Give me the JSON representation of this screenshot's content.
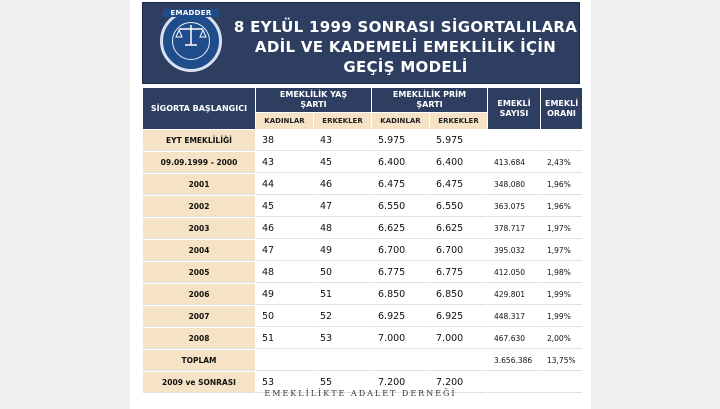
{
  "banner": {
    "logo_text": "EMADDER",
    "title_lines": [
      "8 EYLÜL 1999 SONRASI SİGORTALILARA",
      "ADİL VE KADEMELİ EMEKLİLİK İÇİN",
      "GEÇİŞ MODELİ"
    ]
  },
  "table": {
    "headers": {
      "start": "SİGORTA BAŞLANGICI",
      "age": "EMEKLİLİK YAŞ ŞARTI",
      "premium": "EMEKLİLİK PRİM ŞARTI",
      "retiree_count": "EMEKLİ SAYISI",
      "retiree_rate": "EMEKLİ ORANI",
      "women": "KADINLAR",
      "men": "ERKEKLER"
    },
    "rows": [
      {
        "label": "EYT EMEKLİLİĞİ",
        "age_w": "38",
        "age_m": "43",
        "prim_w": "5.975",
        "prim_m": "5.975",
        "count": "",
        "rate": ""
      },
      {
        "label": "09.09.1999  - 2000",
        "age_w": "43",
        "age_m": "45",
        "prim_w": "6.400",
        "prim_m": "6.400",
        "count": "413.684",
        "rate": "2,43%"
      },
      {
        "label": "2001",
        "age_w": "44",
        "age_m": "46",
        "prim_w": "6.475",
        "prim_m": "6.475",
        "count": "348.080",
        "rate": "1,96%"
      },
      {
        "label": "2002",
        "age_w": "45",
        "age_m": "47",
        "prim_w": "6.550",
        "prim_m": "6.550",
        "count": "363.075",
        "rate": "1,96%"
      },
      {
        "label": "2003",
        "age_w": "46",
        "age_m": "48",
        "prim_w": "6.625",
        "prim_m": "6.625",
        "count": "378.717",
        "rate": "1,97%"
      },
      {
        "label": "2004",
        "age_w": "47",
        "age_m": "49",
        "prim_w": "6.700",
        "prim_m": "6.700",
        "count": "395.032",
        "rate": "1,97%"
      },
      {
        "label": "2005",
        "age_w": "48",
        "age_m": "50",
        "prim_w": "6.775",
        "prim_m": "6.775",
        "count": "412.050",
        "rate": "1,98%"
      },
      {
        "label": "2006",
        "age_w": "49",
        "age_m": "51",
        "prim_w": "6.850",
        "prim_m": "6.850",
        "count": "429.801",
        "rate": "1,99%"
      },
      {
        "label": "2007",
        "age_w": "50",
        "age_m": "52",
        "prim_w": "6.925",
        "prim_m": "6.925",
        "count": "448.317",
        "rate": "1,99%"
      },
      {
        "label": "2008",
        "age_w": "51",
        "age_m": "53",
        "prim_w": "7.000",
        "prim_m": "7.000",
        "count": "467.630",
        "rate": "2,00%"
      },
      {
        "label": "TOPLAM",
        "age_w": "",
        "age_m": "",
        "prim_w": "",
        "prim_m": "",
        "count": "3.656.386",
        "rate": "13,75%"
      },
      {
        "label": "2009 ve SONRASI",
        "age_w": "53",
        "age_m": "55",
        "prim_w": "7.200",
        "prim_m": "7.200",
        "count": "",
        "rate": ""
      }
    ]
  },
  "footer": "EMEKLİLİKTE ADALET DERNEĞİ"
}
